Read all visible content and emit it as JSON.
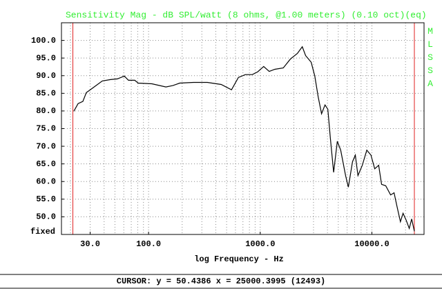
{
  "chart_data": {
    "type": "line",
    "title": "Sensitivity Mag - dB SPL/watt (8 ohms, @1.00 meters) (0.10 oct)(eq)",
    "side_label": "MLSSA",
    "corner_label": "fixed",
    "xlabel": "log Frequency - Hz",
    "cursor": "CURSOR: y = 50.4386 x = 25000.3995 (12493)",
    "xscale": "log",
    "xlim": [
      16.6,
      29300
    ],
    "ylim": [
      45,
      105
    ],
    "yticks": [
      {
        "value": 50,
        "label": "50.0"
      },
      {
        "value": 55,
        "label": "55.0"
      },
      {
        "value": 60,
        "label": "60.0"
      },
      {
        "value": 65,
        "label": "65.0"
      },
      {
        "value": 70,
        "label": "70.0"
      },
      {
        "value": 75,
        "label": "75.0"
      },
      {
        "value": 80,
        "label": "80.0"
      },
      {
        "value": 85,
        "label": "85.0"
      },
      {
        "value": 90,
        "label": "90.0"
      },
      {
        "value": 95,
        "label": "95.0"
      },
      {
        "value": 100,
        "label": "100.0"
      }
    ],
    "xticks": [
      {
        "value": 30,
        "label": "30.0"
      },
      {
        "value": 100,
        "label": "100.0"
      },
      {
        "value": 1000,
        "label": "1000.0"
      },
      {
        "value": 10000,
        "label": "10000.0"
      }
    ],
    "x_minor_grid": [
      20,
      40,
      50,
      60,
      70,
      80,
      90,
      200,
      300,
      400,
      500,
      600,
      700,
      800,
      900,
      2000,
      3000,
      4000,
      5000,
      6000,
      7000,
      8000,
      9000,
      20000
    ],
    "grid": true,
    "markers": [
      21,
      24000
    ],
    "marker_color": "#e02020",
    "series": [
      {
        "name": "Sensitivity",
        "color": "#000000",
        "x": [
          21.4,
          23.4,
          25.8,
          27.7,
          31.9,
          38.5,
          45.6,
          52.6,
          60.7,
          66.1,
          75.2,
          80.8,
          107,
          143,
          165,
          190,
          253,
          336,
          447,
          553,
          638,
          736,
          849,
          950,
          1074,
          1204,
          1351,
          1608,
          1860,
          2150,
          2380,
          2550,
          2860,
          3080,
          3300,
          3540,
          3800,
          4030,
          4240,
          4540,
          4900,
          5250,
          5810,
          6150,
          6700,
          7100,
          7500,
          8200,
          9000,
          9800,
          10600,
          11500,
          12200,
          13300,
          14700,
          15800,
          16800,
          18000,
          19000,
          20300,
          21600,
          22700,
          24000
        ],
        "values": [
          79.9,
          82.1,
          82.7,
          85.2,
          86.6,
          88.5,
          88.9,
          89.1,
          89.9,
          88.7,
          88.7,
          87.9,
          87.7,
          86.8,
          87.2,
          87.9,
          88.1,
          88.1,
          87.5,
          86.0,
          89.5,
          90.3,
          90.3,
          91.1,
          92.6,
          91.2,
          91.8,
          92.2,
          94.7,
          96.3,
          98.2,
          95.7,
          93.8,
          89.9,
          84.0,
          79.2,
          81.7,
          80.5,
          72.4,
          62.6,
          71.4,
          68.9,
          61.7,
          58.4,
          65.6,
          67.5,
          61.7,
          64.6,
          68.9,
          67.5,
          63.6,
          64.6,
          59.2,
          58.8,
          56.2,
          56.8,
          52.9,
          48.6,
          51.0,
          49.0,
          46.7,
          49.4,
          45.9
        ]
      }
    ]
  }
}
